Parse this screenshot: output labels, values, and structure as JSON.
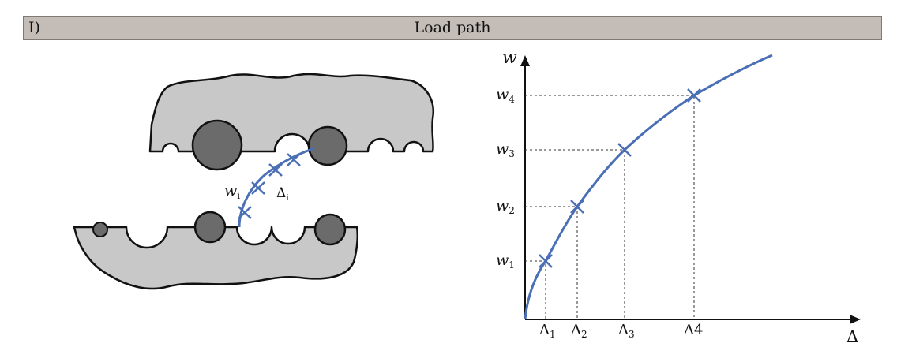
{
  "header": {
    "label": "I)",
    "title": "Load path"
  },
  "left_figure": {
    "w_label_main": "w",
    "w_label_sub": "i",
    "delta_label_main": "Δ",
    "delta_label_sub": "i",
    "colors": {
      "body": "#c8c8c8",
      "sphere": "#6b6b6b",
      "path": "#4a6fb5"
    }
  },
  "graph": {
    "y_axis_label": "w",
    "x_axis_label": "Δ",
    "points": [
      {
        "w_main": "w",
        "w_sub": "1",
        "d_main": "Δ",
        "d_sub": "1"
      },
      {
        "w_main": "w",
        "w_sub": "2",
        "d_main": "Δ",
        "d_sub": "2"
      },
      {
        "w_main": "w",
        "w_sub": "3",
        "d_main": "Δ",
        "d_sub": "3"
      },
      {
        "w_main": "w",
        "w_sub": "4",
        "d_main": "Δ4",
        "d_sub": ""
      }
    ],
    "curve_color": "#4a6fb5"
  }
}
